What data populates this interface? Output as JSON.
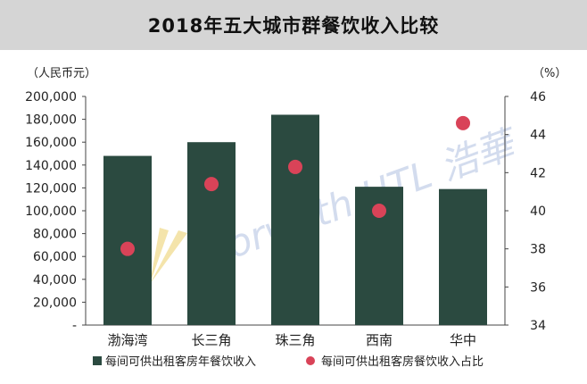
{
  "chart_data": {
    "type": "bar",
    "title": "2018年五大城市群餐饮收入比较",
    "categories": [
      "渤海湾",
      "长三角",
      "珠三角",
      "西南",
      "华中"
    ],
    "y_left": {
      "unit_label": "（人民币元）",
      "lim": [
        0,
        200000
      ],
      "ticks": [
        0,
        20000,
        40000,
        60000,
        80000,
        100000,
        120000,
        140000,
        160000,
        180000,
        200000
      ],
      "tick_labels": [
        "-",
        "20,000",
        "40,000",
        "60,000",
        "80,000",
        "100,000",
        "120,000",
        "140,000",
        "160,000",
        "180,000",
        "200,000"
      ]
    },
    "y_right": {
      "unit_label": "（%）",
      "lim": [
        34,
        46
      ],
      "ticks": [
        34,
        36,
        38,
        40,
        42,
        44,
        46
      ],
      "tick_labels": [
        "34",
        "36",
        "38",
        "40",
        "42",
        "44",
        "46"
      ]
    },
    "series": [
      {
        "name": "每间可供出租客房年餐饮收入",
        "type": "bar",
        "axis": "left",
        "color": "#2b4a40",
        "values": [
          148000,
          160000,
          184000,
          121000,
          119000
        ]
      },
      {
        "name": "每间可供出租客房餐饮收入占比",
        "type": "scatter",
        "axis": "right",
        "color": "#d94358",
        "values": [
          38.0,
          41.4,
          42.3,
          40.0,
          44.6
        ]
      }
    ],
    "legend_position": "bottom",
    "grid": false,
    "watermark": "Horwath HTL 浩華"
  }
}
